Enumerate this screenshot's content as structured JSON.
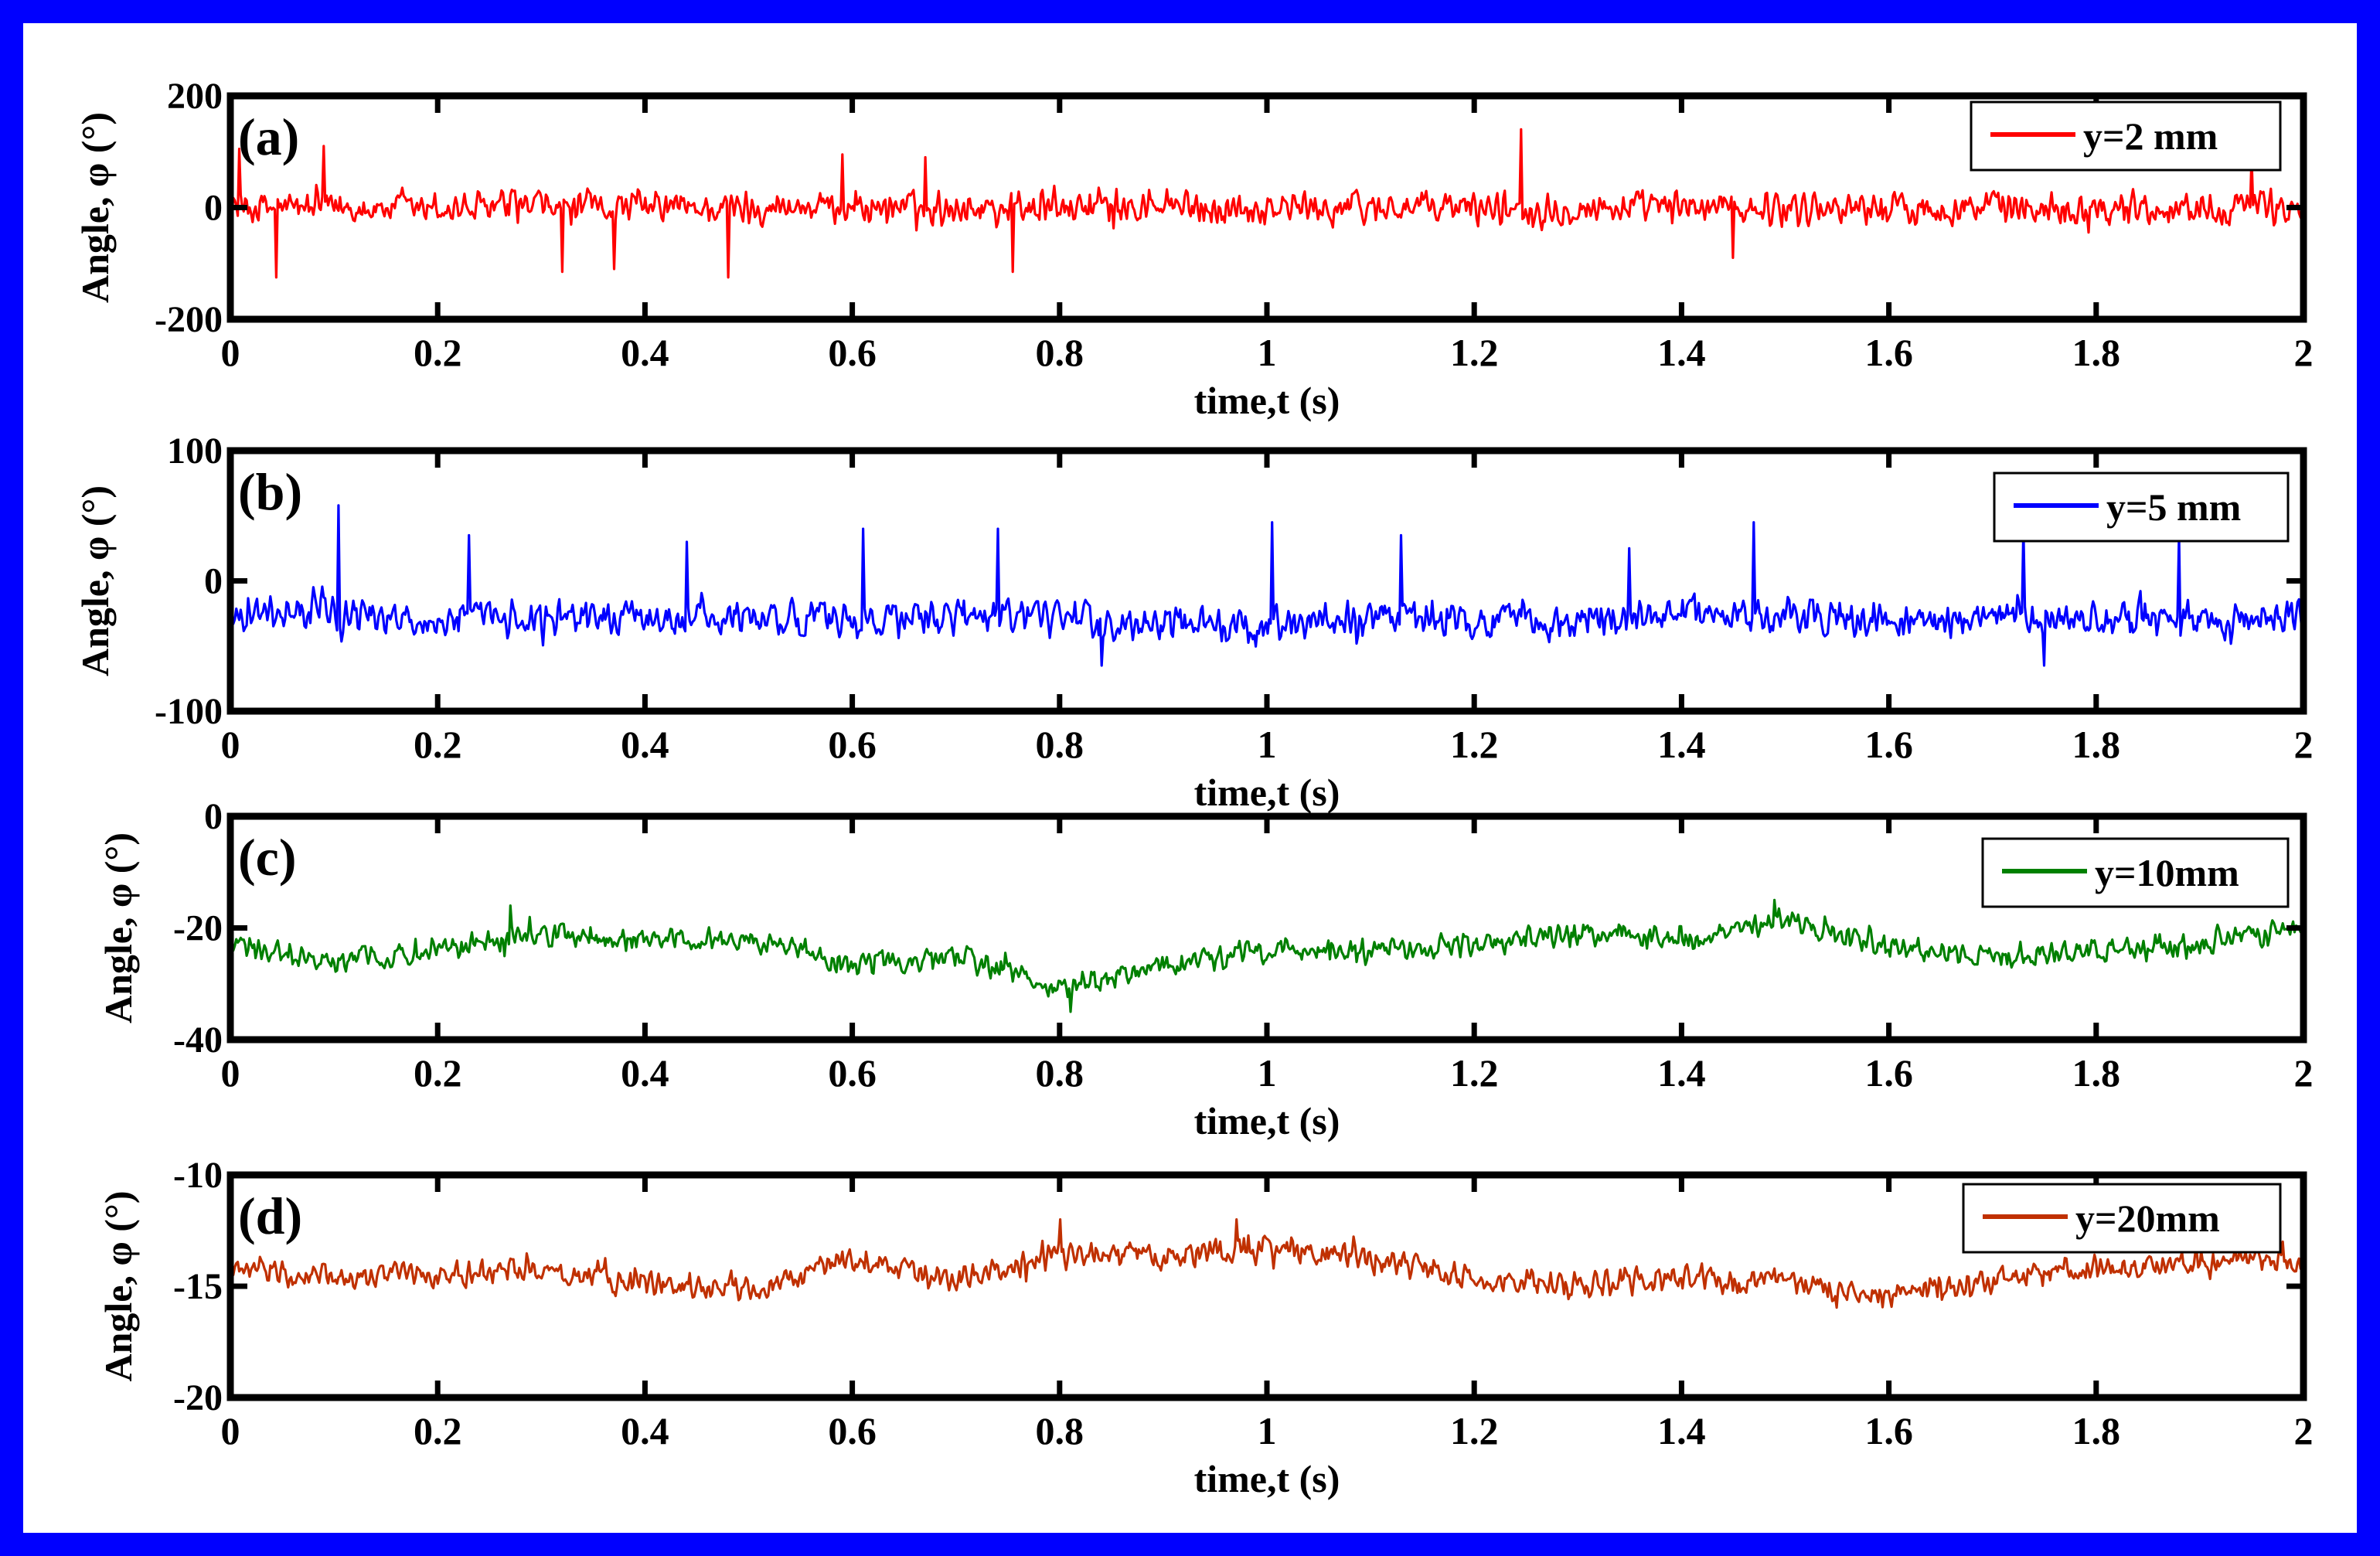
{
  "figure": {
    "border_color": "#0000ff"
  },
  "chart_data": [
    {
      "type": "line",
      "panel_label": "(a)",
      "xlabel": "time,t (s)",
      "ylabel": "Angle, φ (°)",
      "xlim": [
        0,
        2
      ],
      "ylim": [
        -200,
        200
      ],
      "xticks": [
        0,
        0.2,
        0.4,
        0.6,
        0.8,
        1,
        1.2,
        1.4,
        1.6,
        1.8,
        2
      ],
      "xtick_labels": [
        "0",
        "0.2",
        "0.4",
        "0.6",
        "0.8",
        "1",
        "1.2",
        "1.4",
        "1.6",
        "1.8",
        "2"
      ],
      "yticks": [
        -200,
        0,
        200
      ],
      "ytick_labels": [
        "-200",
        "0",
        "200"
      ],
      "grid": false,
      "legend_position": "top-right",
      "series": [
        {
          "name": "y=2 mm",
          "color": "#ff0000",
          "mean": 0,
          "noise_amplitude": 35,
          "spikes": [
            [
              0.008,
              105
            ],
            [
              0.045,
              -125
            ],
            [
              0.09,
              110
            ],
            [
              0.32,
              -115
            ],
            [
              0.37,
              -110
            ],
            [
              0.48,
              -125
            ],
            [
              0.59,
              95
            ],
            [
              0.67,
              90
            ],
            [
              0.755,
              -115
            ],
            [
              1.245,
              140
            ],
            [
              1.45,
              -90
            ],
            [
              1.95,
              90
            ]
          ],
          "x": [
            0,
            0.1,
            0.2,
            0.3,
            0.4,
            0.5,
            0.6,
            0.7,
            0.8,
            0.9,
            1.0,
            1.1,
            1.2,
            1.3,
            1.4,
            1.5,
            1.6,
            1.7,
            1.8,
            1.9,
            2.0
          ],
          "y": [
            0,
            0,
            -3,
            0,
            0,
            0,
            2,
            0,
            0,
            0,
            0,
            0,
            0,
            0,
            0,
            0,
            0,
            0,
            0,
            0,
            0
          ]
        }
      ]
    },
    {
      "type": "line",
      "panel_label": "(b)",
      "xlabel": "time,t (s)",
      "ylabel": "Angle, φ (°)",
      "xlim": [
        0,
        2
      ],
      "ylim": [
        -100,
        100
      ],
      "xticks": [
        0,
        0.2,
        0.4,
        0.6,
        0.8,
        1,
        1.2,
        1.4,
        1.6,
        1.8,
        2
      ],
      "xtick_labels": [
        "0",
        "0.2",
        "0.4",
        "0.6",
        "0.8",
        "1",
        "1.2",
        "1.4",
        "1.6",
        "1.8",
        "2"
      ],
      "yticks": [
        -100,
        0,
        100
      ],
      "ytick_labels": [
        "-100",
        "0",
        "100"
      ],
      "grid": false,
      "legend_position": "top-right",
      "series": [
        {
          "name": "y=5 mm",
          "color": "#0000ff",
          "mean": -30,
          "noise_amplitude": 16,
          "spikes": [
            [
              0.105,
              58
            ],
            [
              0.23,
              35
            ],
            [
              0.44,
              30
            ],
            [
              0.61,
              40
            ],
            [
              0.74,
              40
            ],
            [
              1.005,
              45
            ],
            [
              1.13,
              35
            ],
            [
              1.35,
              25
            ],
            [
              1.47,
              45
            ],
            [
              1.73,
              40
            ],
            [
              1.88,
              35
            ],
            [
              0.84,
              -65
            ],
            [
              1.75,
              -65
            ]
          ],
          "x": [
            0,
            0.1,
            0.2,
            0.3,
            0.4,
            0.5,
            0.6,
            0.7,
            0.8,
            0.9,
            1.0,
            1.1,
            1.2,
            1.3,
            1.4,
            1.5,
            1.6,
            1.7,
            1.8,
            1.9,
            2.0
          ],
          "y": [
            -25,
            -25,
            -30,
            -28,
            -28,
            -30,
            -28,
            -30,
            -27,
            -35,
            -32,
            -28,
            -33,
            -30,
            -25,
            -27,
            -32,
            -30,
            -28,
            -30,
            -28
          ]
        }
      ]
    },
    {
      "type": "line",
      "panel_label": "(c)",
      "xlabel": "time,t (s)",
      "ylabel": "Angle, φ (°)",
      "xlim": [
        0,
        2
      ],
      "ylim": [
        -40,
        0
      ],
      "xticks": [
        0,
        0.2,
        0.4,
        0.6,
        0.8,
        1,
        1.2,
        1.4,
        1.6,
        1.8,
        2
      ],
      "xtick_labels": [
        "0",
        "0.2",
        "0.4",
        "0.6",
        "0.8",
        "1",
        "1.2",
        "1.4",
        "1.6",
        "1.8",
        "2"
      ],
      "yticks": [
        -40,
        -20,
        0
      ],
      "ytick_labels": [
        "-40",
        "-20",
        "0"
      ],
      "grid": false,
      "legend_position": "top-right",
      "series": [
        {
          "name": "y=10mm",
          "color": "#008000",
          "mean": null,
          "noise_amplitude": 2.5,
          "spikes": [
            [
              0.81,
              -35
            ],
            [
              1.49,
              -15
            ],
            [
              0.27,
              -16
            ]
          ],
          "x": [
            0,
            0.1,
            0.2,
            0.3,
            0.4,
            0.5,
            0.6,
            0.7,
            0.8,
            0.9,
            1.0,
            1.1,
            1.2,
            1.3,
            1.4,
            1.5,
            1.6,
            1.7,
            1.8,
            1.9,
            2.0
          ],
          "y": [
            -23,
            -26,
            -24,
            -21,
            -22,
            -22,
            -27,
            -25,
            -31,
            -27,
            -24,
            -24,
            -23,
            -21,
            -22,
            -19,
            -23,
            -25,
            -24,
            -23,
            -20
          ]
        }
      ]
    },
    {
      "type": "line",
      "panel_label": "(d)",
      "xlabel": "time,t (s)",
      "ylabel": "Angle, φ (°)",
      "xlim": [
        0,
        2
      ],
      "ylim": [
        -20,
        -10
      ],
      "xticks": [
        0,
        0.2,
        0.4,
        0.6,
        0.8,
        1,
        1.2,
        1.4,
        1.6,
        1.8,
        2
      ],
      "xtick_labels": [
        "0",
        "0.2",
        "0.4",
        "0.6",
        "0.8",
        "1",
        "1.2",
        "1.4",
        "1.6",
        "1.8",
        "2"
      ],
      "yticks": [
        -20,
        -15,
        -10
      ],
      "ytick_labels": [
        "-20",
        "-15",
        "-10"
      ],
      "grid": false,
      "legend_position": "top-right",
      "series": [
        {
          "name": "y=20mm",
          "color": "#c03000",
          "mean": null,
          "noise_amplitude": 0.7,
          "spikes": [
            [
              0.8,
              -12
            ],
            [
              0.97,
              -12
            ],
            [
              1.98,
              -13
            ]
          ],
          "x": [
            0,
            0.1,
            0.2,
            0.3,
            0.4,
            0.5,
            0.6,
            0.7,
            0.8,
            0.9,
            1.0,
            1.1,
            1.2,
            1.3,
            1.4,
            1.5,
            1.6,
            1.7,
            1.8,
            1.9,
            2.0
          ],
          "y": [
            -14.3,
            -14.5,
            -14.5,
            -14.3,
            -14.8,
            -15.2,
            -13.8,
            -14.8,
            -13.5,
            -13.7,
            -13.3,
            -13.7,
            -14.6,
            -15.0,
            -14.6,
            -14.8,
            -15.4,
            -14.7,
            -14.2,
            -14.0,
            -13.8
          ]
        }
      ]
    }
  ]
}
